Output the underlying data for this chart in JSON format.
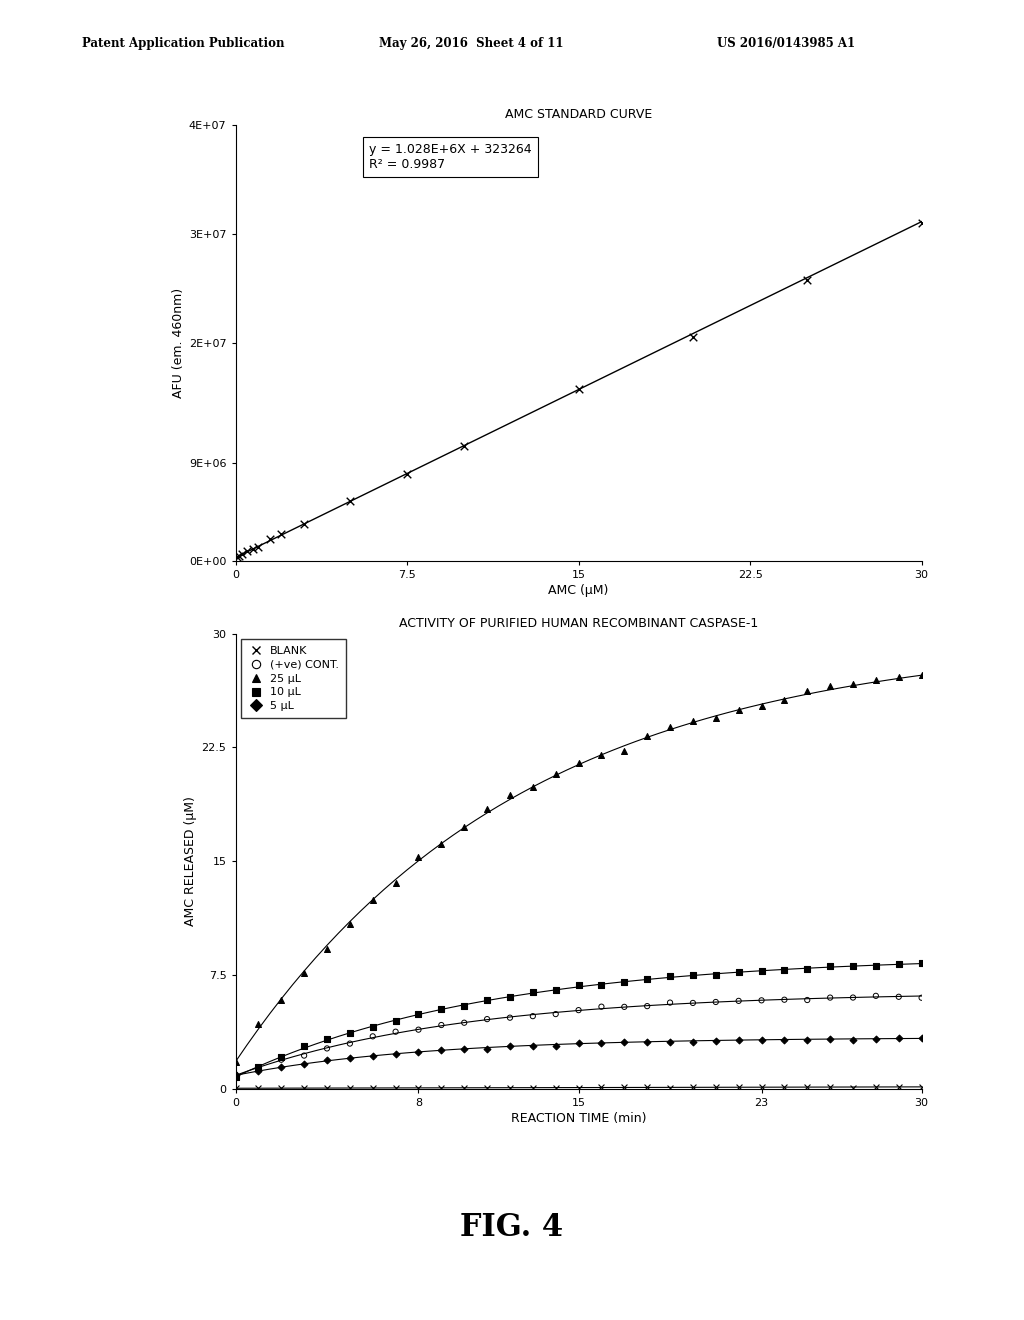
{
  "header_left": "Patent Application Publication",
  "header_mid": "May 26, 2016  Sheet 4 of 11",
  "header_right": "US 2016/0143985 A1",
  "fig_label": "FIG. 4",
  "chart1_title": "AMC STANDARD CURVE",
  "chart1_xlabel": "AMC (μM)",
  "chart1_ylabel": "AFU (em. 460nm)",
  "chart1_xlim": [
    0,
    30
  ],
  "chart1_ylim": [
    0,
    40000000.0
  ],
  "chart1_xticks": [
    0,
    7.5,
    15,
    22.5,
    30
  ],
  "chart1_yticks": [
    0,
    9000000.0,
    20000000.0,
    30000000.0,
    40000000.0
  ],
  "chart1_ytick_labels": [
    "0E+00",
    "9E+06",
    "2E+07",
    "3E+07",
    "4E+07"
  ],
  "chart1_equation": "y = 1.028E+6X + 323264",
  "chart1_r2": "R² = 0.9987",
  "chart1_slope": 1028000,
  "chart1_intercept": 323264,
  "chart1_x_data": [
    0.05,
    0.15,
    0.3,
    0.5,
    0.75,
    1.0,
    1.5,
    2.0,
    3.0,
    5.0,
    7.5,
    10.0,
    15.0,
    20.0,
    25.0,
    30.0
  ],
  "chart2_title": "ACTIVITY OF PURIFIED HUMAN RECOMBINANT CASPASE-1",
  "chart2_xlabel": "REACTION TIME (min)",
  "chart2_ylabel": "AMC RELEASED (μM)",
  "chart2_xlim": [
    0,
    30
  ],
  "chart2_ylim": [
    0,
    30
  ],
  "chart2_xticks": [
    0,
    8,
    15,
    23,
    30
  ],
  "chart2_yticks": [
    0,
    7.5,
    15,
    22.5,
    30
  ],
  "ul25_a": 28.0,
  "ul25_b": 0.08,
  "ul25_c": 1.8,
  "ul10_a": 8.0,
  "ul10_b": 0.09,
  "ul10_c": 0.8,
  "posve_a": 5.5,
  "posve_b": 0.1,
  "posve_c": 0.9,
  "ul5_a": 2.5,
  "ul5_b": 0.12,
  "ul5_c": 0.9,
  "blank_slope": 0.003,
  "blank_intercept": 0.05,
  "legend_entries": [
    "BLANK",
    "(+ve) CONT.",
    "25 μL",
    "10 μL",
    "5 μL"
  ],
  "bg_color": "#ffffff",
  "text_color": "#000000"
}
